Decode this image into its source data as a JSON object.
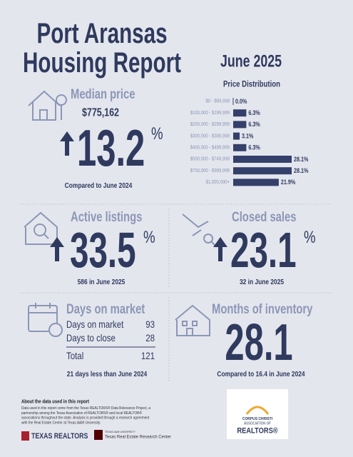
{
  "header": {
    "title": [
      "Port Aransas",
      "Housing Report"
    ],
    "period": "June 2025"
  },
  "chart_data": {
    "type": "bar",
    "orientation": "horizontal",
    "title": "Price Distribution",
    "categories": [
      "$0 - $99,999",
      "$100,000 - $199,999",
      "$200,000 - $299,999",
      "$300,000 - $399,999",
      "$400,000 - $499,999",
      "$500,000 - $749,999",
      "$750,000 - $999,999",
      "$1,000,000+"
    ],
    "values": [
      0.0,
      6.3,
      6.3,
      3.1,
      6.3,
      28.1,
      28.1,
      21.9
    ],
    "value_labels": [
      "0.0%",
      "6.3%",
      "6.3%",
      "3.1%",
      "6.3%",
      "28.1%",
      "28.1%",
      "21.9%"
    ],
    "color": "#34406a"
  },
  "median_price": {
    "heading": "Median price",
    "value": "$775,162",
    "change": "13.2",
    "unit": "%",
    "comparison": "Compared to June 2024"
  },
  "active_listings": {
    "heading": "Active listings",
    "change": "33.5",
    "unit": "%",
    "note": "586 in June 2025"
  },
  "closed_sales": {
    "heading": "Closed sales",
    "change": "23.1",
    "unit": "%",
    "note": "32 in June 2025"
  },
  "days_on_market": {
    "heading": "Days on market",
    "rows": [
      [
        "Days on market",
        "93"
      ],
      [
        "Days to close",
        "28"
      ],
      [
        "Total",
        "121"
      ]
    ],
    "note": "21 days less than June 2024"
  },
  "months_of_inventory": {
    "heading": "Months of inventory",
    "value": "28.1",
    "comparison": "Compared to 16.4 in June 2024"
  },
  "footer": {
    "about_heading": "About the data used in this report",
    "about_lines": [
      "Data used in this report come from the Texas REALTORS® Data Relevance Project, a",
      "partnership among the Texas Association of REALTORS® and local REALTOR®",
      "associations throughout the state. Analysis is provided through a research agreement",
      "with the Real Estate Center at Texas A&M University."
    ],
    "texas_realtors": "TEXAS REALTORS",
    "tamu": "TEXAS A&M UNIVERSITY",
    "research_center": "Texas Real Estate Research Center",
    "partner": [
      "CORPUS CHRISTI",
      "ASSOCIATION OF",
      "REALTORS®"
    ]
  }
}
